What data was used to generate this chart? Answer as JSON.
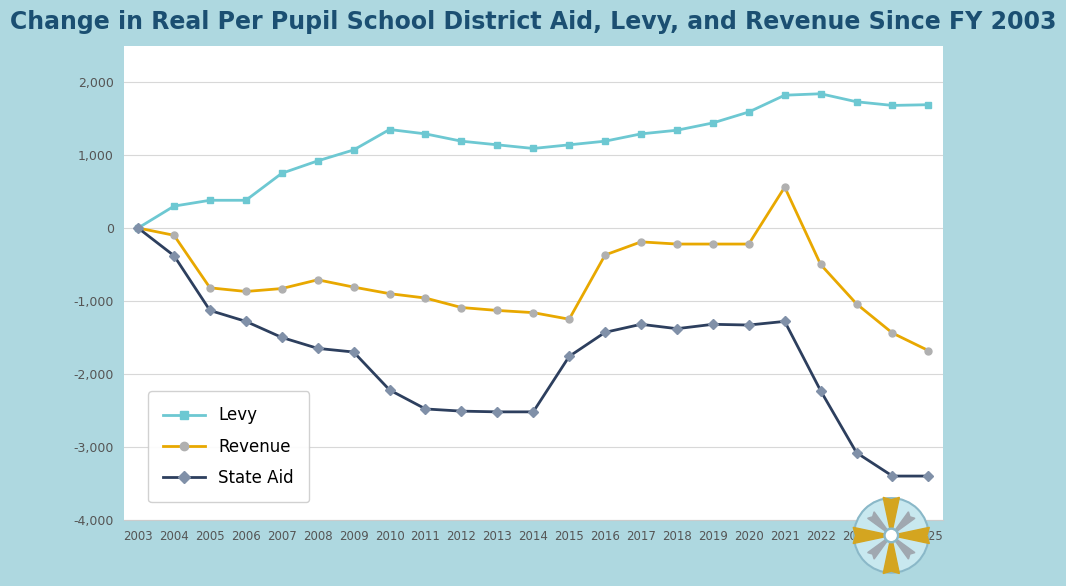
{
  "title": "Change in Real Per Pupil School District Aid, Levy, and Revenue Since FY 2003",
  "years": [
    2003,
    2004,
    2005,
    2006,
    2007,
    2008,
    2009,
    2010,
    2011,
    2012,
    2013,
    2014,
    2015,
    2016,
    2017,
    2018,
    2019,
    2020,
    2021,
    2022,
    2023,
    2024,
    2025
  ],
  "levy": [
    0,
    300,
    380,
    380,
    750,
    920,
    1070,
    1350,
    1290,
    1190,
    1140,
    1090,
    1140,
    1190,
    1290,
    1340,
    1440,
    1590,
    1820,
    1840,
    1730,
    1680,
    1690
  ],
  "revenue": [
    0,
    -100,
    -820,
    -870,
    -830,
    -710,
    -810,
    -900,
    -960,
    -1090,
    -1130,
    -1160,
    -1250,
    -370,
    -190,
    -220,
    -220,
    -220,
    560,
    -500,
    -1040,
    -1440,
    -1680
  ],
  "state_aid": [
    0,
    -380,
    -1130,
    -1280,
    -1500,
    -1650,
    -1700,
    -2220,
    -2480,
    -2510,
    -2520,
    -2520,
    -1760,
    -1430,
    -1320,
    -1380,
    -1320,
    -1330,
    -1280,
    -2230,
    -3080,
    -3400,
    -3400
  ],
  "levy_color": "#6dc8d2",
  "revenue_color": "#e8a800",
  "state_aid_color": "#2d3f5e",
  "background_color": "#ffffff",
  "outer_bg_color": "#aed8e0",
  "title_color": "#1b4f72",
  "ylim": [
    -4000,
    2500
  ],
  "yticks": [
    -4000,
    -3000,
    -2000,
    -1000,
    0,
    1000,
    2000
  ],
  "grid_color": "#d8d8d8",
  "title_fontsize": 17,
  "legend_fontsize": 12,
  "marker_size": 5
}
